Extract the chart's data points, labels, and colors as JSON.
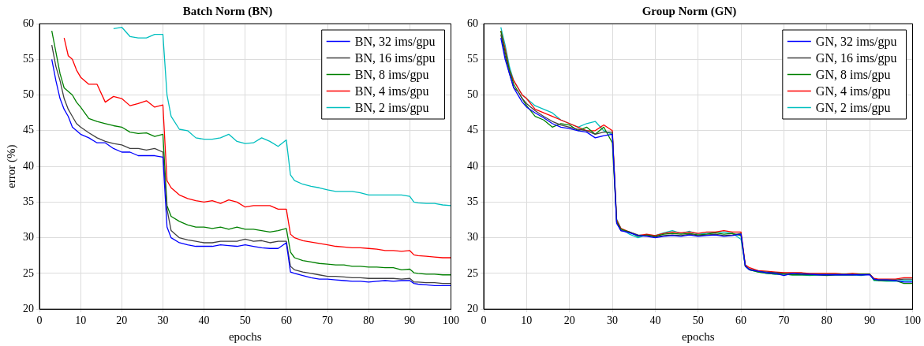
{
  "chart_data": [
    {
      "type": "line",
      "title": "Batch Norm (BN)",
      "xlabel": "epochs",
      "ylabel": "error (%)",
      "xlim": [
        0,
        100
      ],
      "xticks": [
        0,
        10,
        20,
        30,
        40,
        50,
        60,
        70,
        80,
        90,
        100
      ],
      "ylim": [
        20,
        60
      ],
      "yticks": [
        20,
        25,
        30,
        35,
        40,
        45,
        50,
        55,
        60
      ],
      "grid": true,
      "legend": "top right",
      "marker": "none",
      "line_style": "solid",
      "x": [
        3,
        4,
        5,
        6,
        7,
        8,
        9,
        10,
        12,
        14,
        16,
        18,
        20,
        22,
        24,
        26,
        28,
        30,
        31,
        32,
        34,
        36,
        38,
        40,
        42,
        44,
        46,
        48,
        50,
        52,
        54,
        56,
        58,
        60,
        61,
        62,
        64,
        66,
        68,
        70,
        72,
        74,
        76,
        78,
        80,
        82,
        84,
        86,
        88,
        90,
        91,
        92,
        94,
        96,
        98,
        100
      ],
      "series": [
        {
          "name": "BN, 32 ims/gpu",
          "color": "#0000ff",
          "values": [
            55,
            52,
            49.5,
            48,
            47,
            45.5,
            45,
            44.5,
            44,
            43.3,
            43.3,
            42.5,
            42,
            42,
            41.5,
            41.5,
            41.5,
            41.3,
            31.5,
            30,
            29.3,
            29,
            28.8,
            28.8,
            28.8,
            29,
            28.9,
            28.8,
            29,
            28.8,
            28.6,
            28.5,
            28.5,
            29.3,
            25.2,
            25,
            24.7,
            24.4,
            24.2,
            24.2,
            24.1,
            24,
            23.9,
            23.9,
            23.8,
            23.9,
            24,
            23.9,
            24,
            24,
            23.6,
            23.5,
            23.4,
            23.3,
            23.3,
            23.3
          ]
        },
        {
          "name": "BN, 16 ims/gpu",
          "color": "#404040",
          "values": [
            57,
            54,
            52,
            49.5,
            48,
            47,
            46,
            45.5,
            44.7,
            44,
            43.5,
            43.2,
            43,
            42.5,
            42.5,
            42.3,
            42.5,
            42,
            34,
            31,
            30,
            29.7,
            29.5,
            29.3,
            29.3,
            29.5,
            29.5,
            29.5,
            29.8,
            29.5,
            29.6,
            29.3,
            29.5,
            29.5,
            26,
            25.5,
            25.2,
            25,
            24.8,
            24.6,
            24.6,
            24.5,
            24.4,
            24.4,
            24.3,
            24.3,
            24.3,
            24.3,
            24.2,
            24.3,
            23.8,
            23.8,
            23.7,
            23.7,
            23.6,
            23.6
          ]
        },
        {
          "name": "BN, 8 ims/gpu",
          "color": "#008000",
          "values": [
            59,
            56,
            53,
            51,
            50.5,
            50,
            49,
            48.3,
            46.7,
            46.3,
            46,
            45.7,
            45.5,
            44.8,
            44.6,
            44.7,
            44.2,
            44.5,
            34.5,
            33,
            32.3,
            31.8,
            31.5,
            31.5,
            31.3,
            31.5,
            31.2,
            31.5,
            31.2,
            31.2,
            31,
            30.8,
            31,
            31.3,
            28,
            27.2,
            26.8,
            26.6,
            26.4,
            26.3,
            26.2,
            26.2,
            26,
            26,
            25.9,
            25.9,
            25.8,
            25.8,
            25.5,
            25.6,
            25.1,
            25,
            24.9,
            24.9,
            24.8,
            24.8
          ]
        },
        {
          "name": "BN, 4 ims/gpu",
          "color": "#ff0000",
          "values": [
            null,
            null,
            null,
            58,
            55.5,
            55,
            53.5,
            52.5,
            51.5,
            51.5,
            49,
            49.8,
            49.5,
            48.5,
            48.8,
            49.2,
            48.3,
            48.6,
            38,
            37,
            36,
            35.5,
            35.2,
            35,
            35.2,
            34.8,
            35.3,
            35,
            34.3,
            34.5,
            34.5,
            34.5,
            34,
            34,
            30.5,
            30,
            29.6,
            29.4,
            29.2,
            29,
            28.8,
            28.7,
            28.6,
            28.6,
            28.5,
            28.4,
            28.2,
            28.2,
            28.1,
            28.2,
            27.6,
            27.5,
            27.4,
            27.3,
            27.2,
            27.2
          ]
        },
        {
          "name": "BN, 2 ims/gpu",
          "color": "#00bfbf",
          "values": [
            null,
            null,
            null,
            null,
            null,
            null,
            null,
            null,
            null,
            null,
            null,
            59.3,
            59.5,
            58.2,
            58,
            58,
            58.5,
            58.5,
            50,
            47,
            45.2,
            45,
            44,
            43.8,
            43.8,
            44,
            44.5,
            43.5,
            43.2,
            43.3,
            44,
            43.5,
            42.8,
            43.7,
            38.8,
            38,
            37.5,
            37.2,
            37,
            36.7,
            36.5,
            36.5,
            36.5,
            36.3,
            36,
            36,
            36,
            36,
            36,
            35.8,
            35,
            34.9,
            34.8,
            34.8,
            34.6,
            34.5
          ]
        }
      ]
    },
    {
      "type": "line",
      "title": "Group Norm (GN)",
      "xlabel": "epochs",
      "xlim": [
        0,
        100
      ],
      "xticks": [
        0,
        10,
        20,
        30,
        40,
        50,
        60,
        70,
        80,
        90,
        100
      ],
      "ylim": [
        20,
        60
      ],
      "yticks": [
        20,
        25,
        30,
        35,
        40,
        45,
        50,
        55,
        60
      ],
      "grid": true,
      "legend": "top right",
      "marker": "none",
      "line_style": "solid",
      "x": [
        4,
        5,
        6,
        7,
        8,
        9,
        10,
        12,
        14,
        16,
        18,
        20,
        22,
        24,
        26,
        28,
        30,
        31,
        32,
        34,
        36,
        38,
        40,
        42,
        44,
        46,
        48,
        50,
        52,
        54,
        56,
        58,
        60,
        61,
        62,
        64,
        66,
        68,
        70,
        72,
        74,
        76,
        78,
        80,
        82,
        84,
        86,
        88,
        90,
        91,
        92,
        94,
        96,
        98,
        100
      ],
      "series": [
        {
          "name": "GN, 32 ims/gpu",
          "color": "#0000ff",
          "values": [
            58,
            55,
            53,
            51,
            50,
            49,
            48.3,
            47.5,
            46.8,
            46,
            45.5,
            45.3,
            45,
            44.8,
            44,
            44.3,
            44.5,
            32,
            31,
            30.7,
            30.3,
            30.2,
            30,
            30.2,
            30.3,
            30.2,
            30.4,
            30.2,
            30.3,
            30.4,
            30.2,
            30.3,
            30.5,
            26,
            25.5,
            25.3,
            25.1,
            25,
            24.7,
            25,
            24.9,
            24.9,
            24.8,
            24.8,
            24.8,
            24.8,
            24.8,
            24.8,
            24.8,
            24.2,
            24.1,
            24.1,
            24,
            23.8,
            23.8
          ]
        },
        {
          "name": "GN, 16 ims/gpu",
          "color": "#404040",
          "values": [
            58.5,
            55.5,
            53,
            51,
            50.5,
            49.5,
            48.8,
            47.8,
            47,
            46.3,
            45.8,
            45.5,
            45.2,
            45,
            44.5,
            44.8,
            44.8,
            32.2,
            31,
            30.8,
            30.4,
            30.3,
            30.1,
            30.3,
            30.4,
            30.3,
            30.5,
            30.3,
            30.4,
            30.5,
            30.3,
            30.4,
            30.6,
            26.1,
            25.6,
            25.3,
            25.2,
            25.1,
            25,
            25,
            25,
            24.9,
            24.9,
            24.9,
            24.9,
            24.9,
            24.9,
            24.8,
            24.9,
            24.2,
            24.1,
            24.1,
            24.1,
            24.2,
            24.2
          ]
        },
        {
          "name": "GN, 8 ims/gpu",
          "color": "#008000",
          "values": [
            59,
            56,
            53.5,
            51.5,
            50.5,
            49.5,
            48.5,
            47,
            46.5,
            45.5,
            46,
            45.8,
            45,
            45.5,
            44.5,
            45.5,
            43.3,
            32.3,
            31.2,
            30.8,
            30.2,
            30.4,
            30.2,
            30.5,
            30.6,
            30.5,
            30.6,
            30.4,
            30.5,
            30.7,
            30.5,
            30.6,
            30.3,
            26,
            25.5,
            25.2,
            25,
            24.9,
            24.9,
            24.8,
            24.8,
            24.8,
            24.8,
            24.7,
            24.8,
            24.8,
            24.8,
            24.9,
            24.9,
            24.1,
            24,
            24,
            24,
            23.6,
            23.6
          ]
        },
        {
          "name": "GN, 4 ims/gpu",
          "color": "#ff0000",
          "values": [
            59,
            56.5,
            53.5,
            52,
            51,
            50,
            49.5,
            48,
            47.5,
            47,
            46.5,
            46,
            45.5,
            45,
            45,
            45.8,
            45,
            32.5,
            31.3,
            30.8,
            30.3,
            30.5,
            30.3,
            30.6,
            30.8,
            30.7,
            30.8,
            30.6,
            30.8,
            30.8,
            31,
            30.8,
            30.8,
            26.2,
            25.8,
            25.4,
            25.3,
            25.2,
            25.1,
            25.1,
            25.1,
            25,
            25,
            25,
            25,
            24.9,
            25,
            24.9,
            24.9,
            24.3,
            24.2,
            24.2,
            24.2,
            24.4,
            24.4
          ]
        },
        {
          "name": "GN, 2 ims/gpu",
          "color": "#00bfbf",
          "values": [
            59.5,
            57,
            54,
            52,
            51,
            50,
            49.5,
            48.5,
            48,
            47.5,
            46.5,
            46,
            45.5,
            46,
            46.3,
            45,
            44.5,
            32.6,
            31.3,
            30.5,
            30,
            30.4,
            30.3,
            30.7,
            31,
            30.6,
            30.9,
            30.5,
            30.6,
            30.7,
            30.8,
            30.6,
            29.8,
            26,
            25.5,
            25.2,
            25,
            24.9,
            24.9,
            24.8,
            24.8,
            24.7,
            24.8,
            24.8,
            24.8,
            24.8,
            24.8,
            24.7,
            24.9,
            24,
            24,
            23.9,
            23.9,
            24,
            24
          ]
        }
      ]
    }
  ]
}
